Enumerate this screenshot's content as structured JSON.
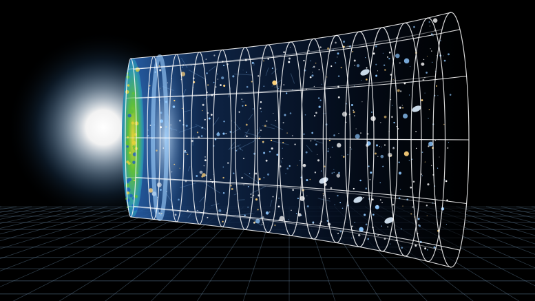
{
  "image": {
    "subject": "universe-expansion-timeline",
    "colors": {
      "background": "#000000",
      "glow": "#ffffff",
      "glow_tint": "#a9d3ff",
      "grid_floor": "#7fa6c8",
      "wireframe": "#ffffff",
      "cmb_blue": "#1f5fbf",
      "cmb_green": "#5fbf3a",
      "cmb_yellow": "#e8d23a",
      "galaxy_blue": "#8ec8ff",
      "galaxy_warm": "#ffd27a"
    }
  }
}
